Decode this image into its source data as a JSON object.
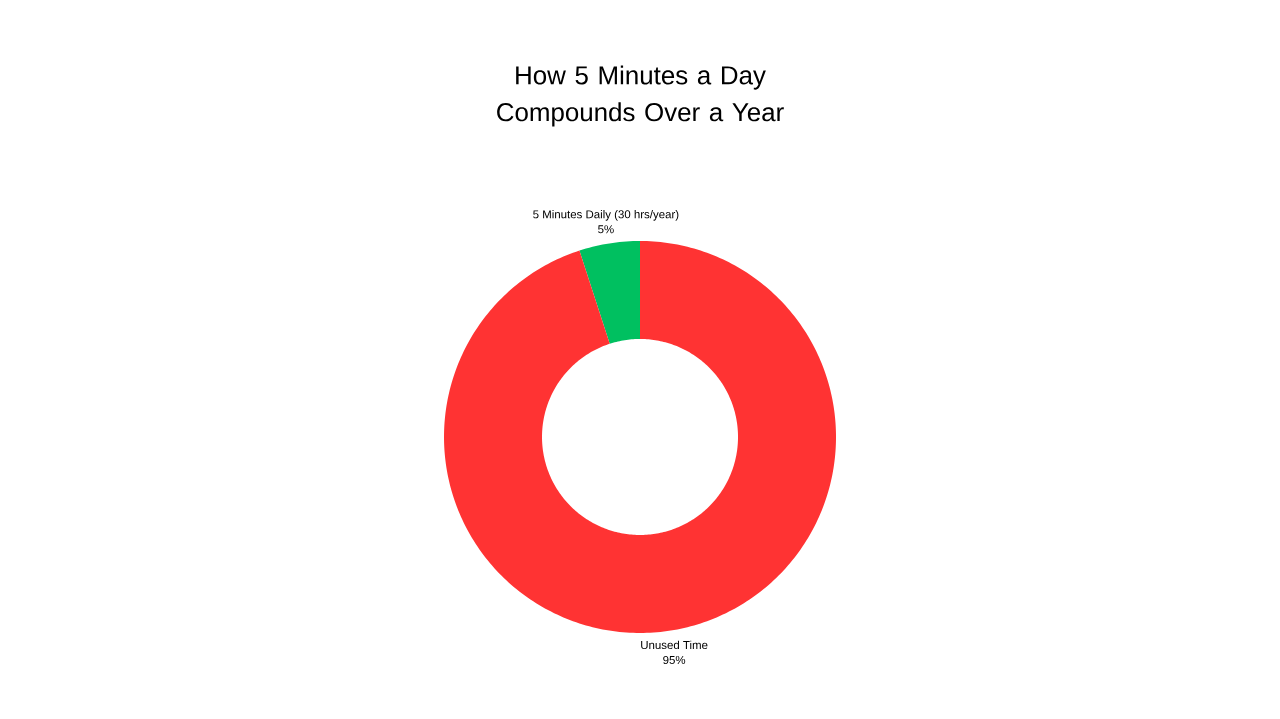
{
  "chart_data": {
    "type": "donut",
    "title": "How 5 Minutes a Day Compounds Over a Year",
    "categories": [
      "5 Minutes Daily (30 hrs/year)",
      "Unused Time"
    ],
    "values": [
      5,
      95
    ],
    "colors": [
      "#00c060",
      "#ff3333"
    ],
    "value_labels": [
      "5%",
      "95%"
    ]
  }
}
